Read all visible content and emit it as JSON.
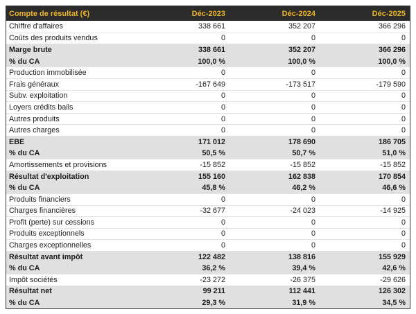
{
  "chart_data": {
    "type": "table",
    "title": "Compte de résultat (€)",
    "columns": [
      "Compte de résultat (€)",
      "Déc-2023",
      "Déc-2024",
      "Déc-2025"
    ],
    "rows": [
      {
        "label": "Chiffre d'affaires",
        "values": [
          "338 661",
          "352 207",
          "366 296"
        ],
        "emphasis": false
      },
      {
        "label": "Coûts des produits vendus",
        "values": [
          "0",
          "0",
          "0"
        ],
        "emphasis": false
      },
      {
        "label": "Marge brute",
        "values": [
          "338 661",
          "352 207",
          "366 296"
        ],
        "emphasis": true
      },
      {
        "label": "% du CA",
        "values": [
          "100,0 %",
          "100,0 %",
          "100,0 %"
        ],
        "emphasis": true
      },
      {
        "label": "Production immobilisée",
        "values": [
          "0",
          "0",
          "0"
        ],
        "emphasis": false
      },
      {
        "label": "Frais généraux",
        "values": [
          "-167 649",
          "-173 517",
          "-179 590"
        ],
        "emphasis": false
      },
      {
        "label": "Subv. exploitation",
        "values": [
          "0",
          "0",
          "0"
        ],
        "emphasis": false
      },
      {
        "label": "Loyers crédits bails",
        "values": [
          "0",
          "0",
          "0"
        ],
        "emphasis": false
      },
      {
        "label": "Autres produits",
        "values": [
          "0",
          "0",
          "0"
        ],
        "emphasis": false
      },
      {
        "label": "Autres charges",
        "values": [
          "0",
          "0",
          "0"
        ],
        "emphasis": false
      },
      {
        "label": "EBE",
        "values": [
          "171 012",
          "178 690",
          "186 705"
        ],
        "emphasis": true
      },
      {
        "label": "% du CA",
        "values": [
          "50,5 %",
          "50,7 %",
          "51,0 %"
        ],
        "emphasis": true
      },
      {
        "label": "Amortissements et provisions",
        "values": [
          "-15 852",
          "-15 852",
          "-15 852"
        ],
        "emphasis": false
      },
      {
        "label": "Résultat d'exploitation",
        "values": [
          "155 160",
          "162 838",
          "170 854"
        ],
        "emphasis": true
      },
      {
        "label": "% du CA",
        "values": [
          "45,8 %",
          "46,2 %",
          "46,6 %"
        ],
        "emphasis": true
      },
      {
        "label": "Produits financiers",
        "values": [
          "0",
          "0",
          "0"
        ],
        "emphasis": false
      },
      {
        "label": "Charges financières",
        "values": [
          "-32 677",
          "-24 023",
          "-14 925"
        ],
        "emphasis": false
      },
      {
        "label": "Profit (perte) sur cessions",
        "values": [
          "0",
          "0",
          "0"
        ],
        "emphasis": false
      },
      {
        "label": "Produits exceptionnels",
        "values": [
          "0",
          "0",
          "0"
        ],
        "emphasis": false
      },
      {
        "label": "Charges exceptionnelles",
        "values": [
          "0",
          "0",
          "0"
        ],
        "emphasis": false
      },
      {
        "label": "Résultat avant impôt",
        "values": [
          "122 482",
          "138 816",
          "155 929"
        ],
        "emphasis": true
      },
      {
        "label": "% du CA",
        "values": [
          "36,2 %",
          "39,4 %",
          "42,6 %"
        ],
        "emphasis": true
      },
      {
        "label": "Impôt sociétés",
        "values": [
          "-23 272",
          "-26 375",
          "-29 626"
        ],
        "emphasis": false
      },
      {
        "label": "Résultat net",
        "values": [
          "99 211",
          "112 441",
          "126 302"
        ],
        "emphasis": true
      },
      {
        "label": "% du CA",
        "values": [
          "29,3 %",
          "31,9 %",
          "34,5 %"
        ],
        "emphasis": true
      }
    ],
    "layout": {
      "legend": "none",
      "grid": "row-separators",
      "value_alignment": "right",
      "emphasized_rows_have_gray_band": true
    },
    "colors": {
      "header_bg": "#2b2b2b",
      "header_text": "#f0b429",
      "band_bg": "#e0e0e0",
      "body_text": "#1c1c1c",
      "row_border": "#e4e4e4",
      "outer_border": "#333333",
      "page_bg": "#ffffff"
    }
  }
}
